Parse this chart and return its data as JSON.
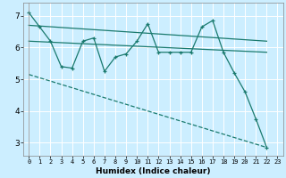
{
  "xlabel": "Humidex (Indice chaleur)",
  "ylabel": "",
  "xlim": [
    -0.5,
    23.5
  ],
  "ylim": [
    2.6,
    7.4
  ],
  "yticks": [
    3,
    4,
    5,
    6,
    7
  ],
  "xtick_labels": [
    "0",
    "1",
    "2",
    "3",
    "4",
    "5",
    "6",
    "7",
    "8",
    "9",
    "10",
    "11",
    "12",
    "13",
    "14",
    "15",
    "16",
    "17",
    "18",
    "19",
    "20",
    "21",
    "22",
    "23"
  ],
  "bg_color": "#cceeff",
  "line_color": "#1a7a6e",
  "grid_color": "#ffffff",
  "lines": [
    {
      "x": [
        0,
        1,
        2,
        3,
        4,
        5,
        6,
        7,
        8,
        9,
        10,
        11,
        12,
        13,
        14,
        15,
        16,
        17,
        18,
        19,
        20,
        21,
        22
      ],
      "y": [
        7.1,
        6.65,
        6.2,
        5.4,
        5.35,
        6.2,
        6.3,
        5.25,
        5.7,
        5.8,
        6.2,
        6.75,
        5.85,
        5.85,
        5.85,
        5.85,
        6.65,
        6.85,
        5.85,
        5.2,
        4.6,
        3.75,
        2.85
      ],
      "marker": "+",
      "linestyle": "-",
      "linewidth": 0.9
    },
    {
      "x": [
        0,
        22
      ],
      "y": [
        6.2,
        5.85
      ],
      "marker": null,
      "linestyle": "-",
      "linewidth": 0.9
    },
    {
      "x": [
        0,
        22
      ],
      "y": [
        6.7,
        6.2
      ],
      "marker": null,
      "linestyle": "-",
      "linewidth": 0.9
    },
    {
      "x": [
        0,
        22
      ],
      "y": [
        5.15,
        2.85
      ],
      "marker": null,
      "linestyle": "--",
      "linewidth": 0.9
    }
  ]
}
